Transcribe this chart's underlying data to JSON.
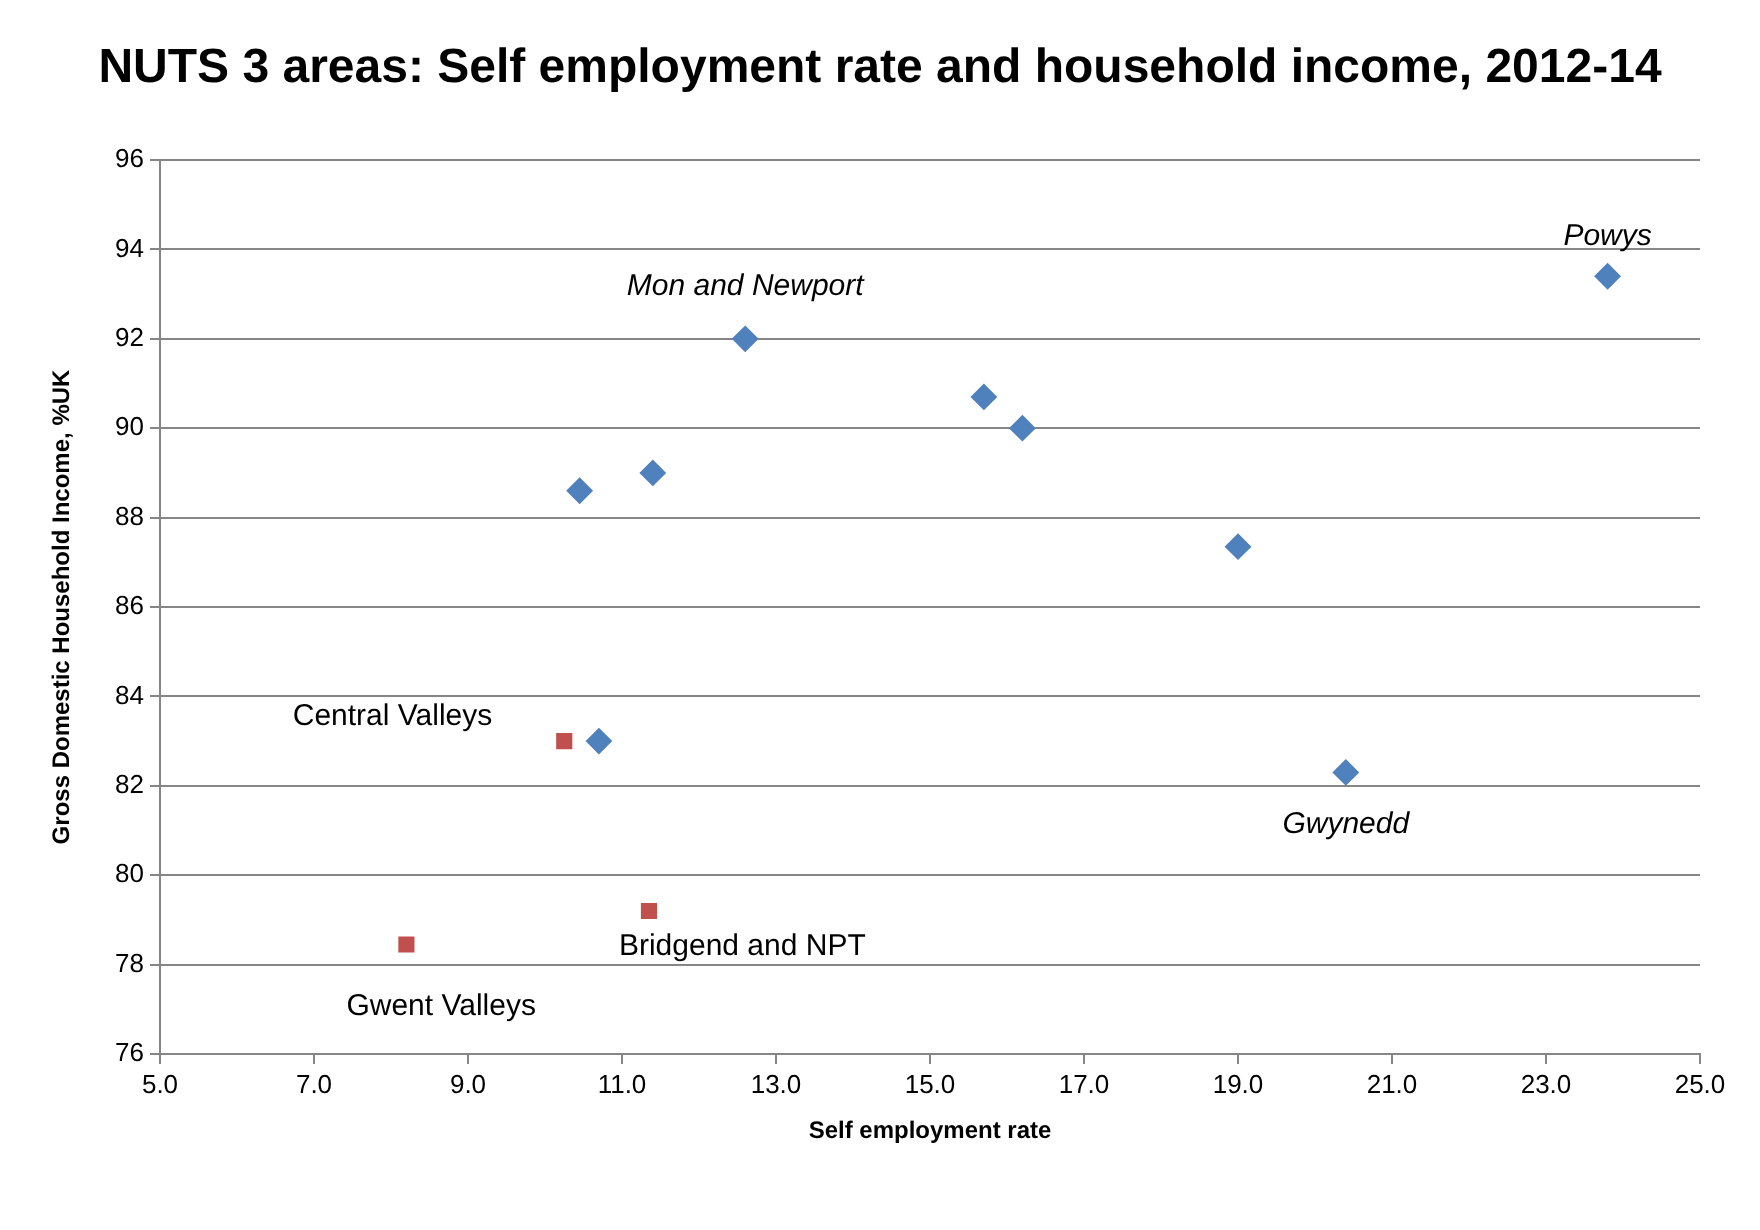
{
  "chart_data": {
    "type": "scatter",
    "title": "NUTS 3 areas: Self employment rate and household income, 2012-14",
    "xlabel": "Self employment rate",
    "ylabel": "Gross Domestic Household Income, %UK",
    "xlim": [
      5,
      25
    ],
    "xticks": [
      {
        "value": 5,
        "label": "5.0"
      },
      {
        "value": 7,
        "label": "7.0"
      },
      {
        "value": 9,
        "label": "9.0"
      },
      {
        "value": 11,
        "label": "11.0"
      },
      {
        "value": 13,
        "label": "13.0"
      },
      {
        "value": 15,
        "label": "15.0"
      },
      {
        "value": 17,
        "label": "17.0"
      },
      {
        "value": 19,
        "label": "19.0"
      },
      {
        "value": 21,
        "label": "21.0"
      },
      {
        "value": 23,
        "label": "23.0"
      },
      {
        "value": 25,
        "label": "25.0"
      }
    ],
    "ylim": [
      76,
      96
    ],
    "yticks": [
      76,
      78,
      80,
      82,
      84,
      86,
      88,
      90,
      92,
      94,
      96
    ],
    "grid": "y",
    "legend": false,
    "series": [
      {
        "color": "#4f81bd",
        "marker": "diamond",
        "x": [
          10.45,
          11.4,
          12.6,
          15.7,
          16.2,
          19.0,
          20.4,
          23.8,
          10.7
        ],
        "values": [
          88.6,
          89.0,
          92.0,
          90.7,
          90.0,
          87.35,
          82.3,
          93.4,
          83.0
        ]
      },
      {
        "color": "#c0504d",
        "marker": "square",
        "x": [
          10.25,
          11.35,
          8.2
        ],
        "values": [
          83.0,
          79.2,
          78.45
        ]
      }
    ],
    "annotations": [
      {
        "text": "Mon and Newport",
        "x": 12.6,
        "y": 92.0
      },
      {
        "text": "Powys",
        "x": 23.8,
        "y": 93.4
      },
      {
        "text": "Gwynedd",
        "x": 20.4,
        "y": 82.3
      },
      {
        "text": "Central Valleys",
        "x": 10.25,
        "y": 83.0
      },
      {
        "text": "Bridgend and NPT",
        "x": 11.35,
        "y": 79.2
      },
      {
        "text": "Gwent Valleys",
        "x": 8.2,
        "y": 78.45
      }
    ]
  }
}
